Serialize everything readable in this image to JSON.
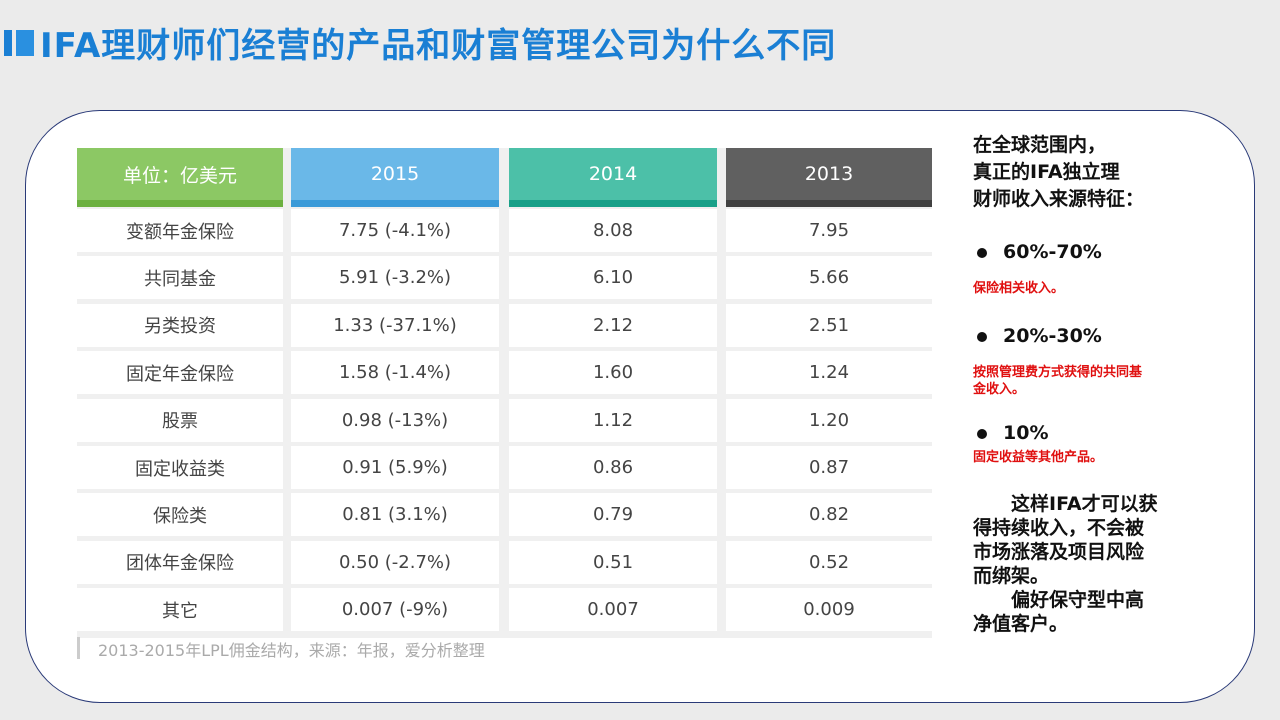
{
  "header": {
    "title": "IFA理财师们经营的产品和财富管理公司为什么不同"
  },
  "table": {
    "columns": [
      "单位：亿美元",
      "2015",
      "2014",
      "2013"
    ],
    "rows": [
      [
        "变额年金保险",
        "7.75 (-4.1%)",
        "8.08",
        "7.95"
      ],
      [
        "共同基金",
        "5.91 (-3.2%)",
        "6.10",
        "5.66"
      ],
      [
        "另类投资",
        "1.33 (-37.1%)",
        "2.12",
        "2.51"
      ],
      [
        "固定年金保险",
        "1.58 (-1.4%)",
        "1.60",
        "1.24"
      ],
      [
        "股票",
        "0.98 (-13%)",
        "1.12",
        "1.20"
      ],
      [
        "固定收益类",
        "0.91 (5.9%)",
        "0.86",
        "0.87"
      ],
      [
        "保险类",
        "0.81 (3.1%)",
        "0.79",
        "0.82"
      ],
      [
        "团体年金保险",
        "0.50 (-2.7%)",
        "0.51",
        "0.52"
      ],
      [
        "其它",
        "0.007 (-9%)",
        "0.007",
        "0.009"
      ]
    ],
    "caption": "2013-2015年LPL佣金结构，来源：年报，爱分析整理"
  },
  "sidebar": {
    "intro": [
      "在全球范围内，",
      "真正的IFA独立理",
      "财师收入来源特征："
    ],
    "points": [
      {
        "pct": "60%-70%",
        "desc": [
          "保险相关收入。"
        ]
      },
      {
        "pct": "20%-30%",
        "desc": [
          "按照管理费方式获得的共同基",
          "金收入。"
        ]
      },
      {
        "pct": "10%",
        "desc": [
          "固定收益等其他产品。"
        ]
      }
    ],
    "conclusion": [
      "这样IFA才可以获",
      "得持续收入，不会被",
      "市场涨落及项目风险",
      "而绑架。",
      "偏好保守型中高",
      "净值客户。"
    ]
  }
}
